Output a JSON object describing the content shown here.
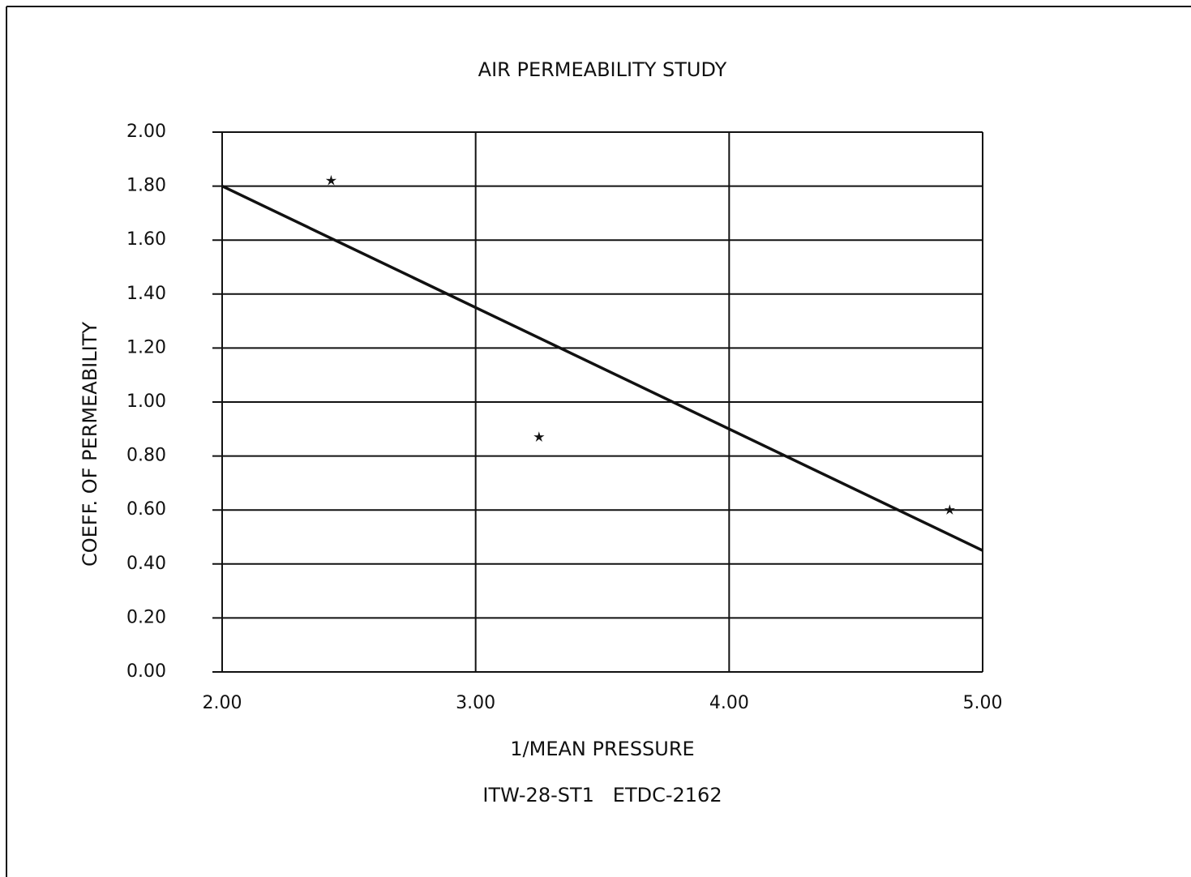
{
  "chart_data": {
    "type": "scatter",
    "title": "AIR PERMEABILITY STUDY",
    "x_label": "1/MEAN PRESSURE",
    "y_label": "COEFF. OF PERMEABILITY",
    "subtitle": "ITW-28-ST1   ETDC-2162",
    "xlim": [
      2,
      5
    ],
    "ylim": [
      0,
      2
    ],
    "xticks": [
      {
        "value": 2,
        "label": "2.00"
      },
      {
        "value": 3,
        "label": "3.00"
      },
      {
        "value": 4,
        "label": "4.00"
      },
      {
        "value": 5,
        "label": "5.00"
      }
    ],
    "yticks": [
      {
        "value": 0,
        "label": "0.00"
      },
      {
        "value": 0.2,
        "label": "0.20"
      },
      {
        "value": 0.4,
        "label": "0.40"
      },
      {
        "value": 0.6,
        "label": "0.60"
      },
      {
        "value": 0.8,
        "label": "0.80"
      },
      {
        "value": 1,
        "label": "1.00"
      },
      {
        "value": 1.2,
        "label": "1.20"
      },
      {
        "value": 1.4,
        "label": "1.40"
      },
      {
        "value": 1.6,
        "label": "1.60"
      },
      {
        "value": 1.8,
        "label": "1.80"
      },
      {
        "value": 2,
        "label": "2.00"
      }
    ],
    "grid": true,
    "series": [
      {
        "style": "markers",
        "color": "#111",
        "x": [
          2.43,
          3.25,
          4.87
        ],
        "values": [
          1.82,
          0.87,
          0.6
        ]
      },
      {
        "style": "line",
        "color": "#111",
        "x": [
          2,
          5
        ],
        "values": [
          1.8,
          0.45
        ]
      }
    ]
  }
}
